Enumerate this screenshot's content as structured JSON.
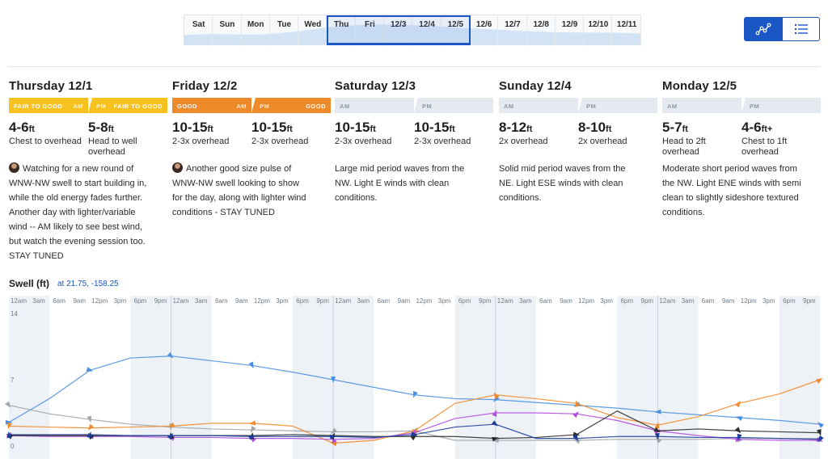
{
  "day_strip": {
    "days": [
      "Sat",
      "Sun",
      "Mon",
      "Tue",
      "Wed",
      "Thu",
      "Fri",
      "12/3",
      "12/4",
      "12/5",
      "12/6",
      "12/7",
      "12/8",
      "12/9",
      "12/10",
      "12/11"
    ]
  },
  "view_toggle": {
    "graph_icon": "graph-icon",
    "list_icon": "list-icon"
  },
  "forecast": [
    {
      "title": "Thursday 12/1",
      "am_rating": "FAIR TO GOOD",
      "pm_rating": "FAIR TO GOOD",
      "am_label": "AM",
      "pm_label": "PM",
      "am_color": "#f7c120",
      "pm_color": "#f7c120",
      "am_height": "4-6",
      "am_desc": "Chest to overhead",
      "pm_height": "5-8",
      "pm_desc": "Head to well overhead",
      "unit": "ft",
      "am_suffix": "",
      "pm_suffix": "",
      "has_avatar": true,
      "observation": "Watching for a new round of WNW-NW swell to start building in, while the old energy fades further. Another day with lighter/variable wind -- AM likely to see best wind, but watch the evening session too. STAY TUNED"
    },
    {
      "title": "Friday 12/2",
      "am_rating": "GOOD",
      "pm_rating": "GOOD",
      "am_label": "AM",
      "pm_label": "PM",
      "am_color": "#ef8a2b",
      "pm_color": "#ef8a2b",
      "am_height": "10-15",
      "am_desc": "2-3x overhead",
      "pm_height": "10-15",
      "pm_desc": "2-3x overhead",
      "unit": "ft",
      "am_suffix": "",
      "pm_suffix": "",
      "has_avatar": true,
      "observation": "Another good size pulse of WNW-NW swell looking to show for the day, along with lighter wind conditions - STAY TUNED"
    },
    {
      "title": "Saturday 12/3",
      "am_rating": "",
      "pm_rating": "",
      "am_label": "AM",
      "pm_label": "PM",
      "am_color": "#e4eaef",
      "pm_color": "#e4eaef",
      "am_height": "10-15",
      "am_desc": "2-3x overhead",
      "pm_height": "10-15",
      "pm_desc": "2-3x overhead",
      "unit": "ft",
      "am_suffix": "",
      "pm_suffix": "",
      "has_avatar": false,
      "observation": "Large mid period waves from the NW. Light E winds with clean conditions."
    },
    {
      "title": "Sunday 12/4",
      "am_rating": "",
      "pm_rating": "",
      "am_label": "AM",
      "pm_label": "PM",
      "am_color": "#e4eaef",
      "pm_color": "#e4eaef",
      "am_height": "8-12",
      "am_desc": "2x overhead",
      "pm_height": "8-10",
      "pm_desc": "2x overhead",
      "unit": "ft",
      "am_suffix": "",
      "pm_suffix": "",
      "has_avatar": false,
      "observation": "Solid mid period waves from the NE. Light ESE winds with clean conditions."
    },
    {
      "title": "Monday 12/5",
      "am_rating": "",
      "pm_rating": "",
      "am_label": "AM",
      "pm_label": "PM",
      "am_color": "#e4eaef",
      "pm_color": "#e4eaef",
      "am_height": "5-7",
      "am_desc": "Head to 2ft overhead",
      "pm_height": "4-6",
      "pm_desc": "Chest to 1ft overhead",
      "unit": "ft",
      "am_suffix": "",
      "pm_suffix": "+",
      "has_avatar": false,
      "observation": "Moderate short period waves from the NW. Light ENE winds with semi clean to slightly sideshore textured conditions."
    }
  ],
  "swell": {
    "title": "Swell (ft)",
    "location": "at 21.75, -158.25"
  },
  "chart_data": {
    "type": "line",
    "title": "Swell (ft)",
    "subtitle": "at 21.75, -158.25",
    "ylim": [
      0,
      14
    ],
    "y_ticks": [
      "14",
      "7",
      "0"
    ],
    "x_tick_labels": [
      "12am",
      "3am",
      "6am",
      "9am",
      "12pm",
      "3pm",
      "6pm",
      "9pm"
    ],
    "days": 5,
    "x_unit": "hours",
    "grid": true,
    "series": [
      {
        "color": "#4a90e2",
        "x": [
          0,
          6,
          12,
          18,
          24,
          30,
          36,
          42,
          48,
          54,
          60,
          66,
          72,
          78,
          84,
          90,
          96,
          102,
          108,
          114,
          120
        ],
        "values": [
          2.5,
          5.0,
          8.0,
          9.3,
          9.5,
          9.0,
          8.5,
          7.8,
          7.0,
          6.2,
          5.4,
          5.0,
          4.9,
          4.6,
          4.3,
          4.0,
          3.6,
          3.3,
          3.0,
          2.7,
          2.3
        ]
      },
      {
        "color": "#a0a6ab",
        "x": [
          0,
          6,
          12,
          18,
          24,
          30,
          36,
          42,
          48,
          54,
          60,
          66,
          72,
          78,
          84,
          90,
          96,
          102,
          108,
          114,
          120
        ],
        "values": [
          4.3,
          3.4,
          2.8,
          2.3,
          2.0,
          1.8,
          1.7,
          1.6,
          1.5,
          1.5,
          1.6,
          0.6,
          0.6,
          0.6,
          0.6,
          0.7,
          0.7,
          0.7,
          0.8,
          0.8,
          0.8
        ]
      },
      {
        "color": "#ef8a2b",
        "x": [
          0,
          6,
          12,
          18,
          24,
          30,
          36,
          42,
          48,
          54,
          60,
          66,
          72,
          78,
          84,
          90,
          96,
          102,
          108,
          114,
          120
        ],
        "values": [
          2.1,
          2.0,
          1.9,
          2.0,
          2.1,
          2.4,
          2.4,
          2.1,
          0.3,
          0.6,
          1.6,
          4.5,
          5.4,
          5.0,
          4.5,
          3.0,
          2.2,
          3.1,
          4.5,
          5.5,
          7.0
        ]
      },
      {
        "color": "#b14ce0",
        "x": [
          0,
          6,
          12,
          18,
          24,
          30,
          36,
          42,
          48,
          54,
          60,
          66,
          72,
          78,
          84,
          90,
          96,
          102,
          108,
          114,
          120
        ],
        "values": [
          1.1,
          1.0,
          1.0,
          1.0,
          0.9,
          0.9,
          0.8,
          0.8,
          0.7,
          0.8,
          1.4,
          2.9,
          3.5,
          3.5,
          3.4,
          2.7,
          1.6,
          1.1,
          0.7,
          0.6,
          0.6
        ]
      },
      {
        "color": "#2b2b2b",
        "x": [
          0,
          6,
          12,
          18,
          24,
          30,
          36,
          42,
          48,
          54,
          60,
          66,
          72,
          78,
          84,
          90,
          96,
          102,
          108,
          114,
          120
        ],
        "values": [
          1.1,
          1.1,
          1.1,
          1.1,
          1.1,
          1.1,
          1.1,
          1.2,
          1.1,
          1.0,
          1.0,
          1.0,
          0.8,
          0.9,
          1.2,
          3.7,
          1.6,
          1.8,
          1.6,
          1.5,
          1.4
        ]
      },
      {
        "color": "#1a3f9a",
        "x": [
          0,
          6,
          12,
          18,
          24,
          30,
          36,
          42,
          48,
          54,
          60,
          66,
          72,
          78,
          84,
          90,
          96,
          102,
          108,
          114,
          120
        ],
        "values": [
          1.2,
          1.2,
          1.2,
          1.1,
          1.1,
          1.1,
          1.0,
          1.0,
          1.0,
          0.9,
          1.2,
          2.0,
          2.3,
          0.8,
          0.8,
          1.0,
          1.0,
          0.9,
          0.9,
          0.8,
          0.7
        ]
      }
    ]
  }
}
